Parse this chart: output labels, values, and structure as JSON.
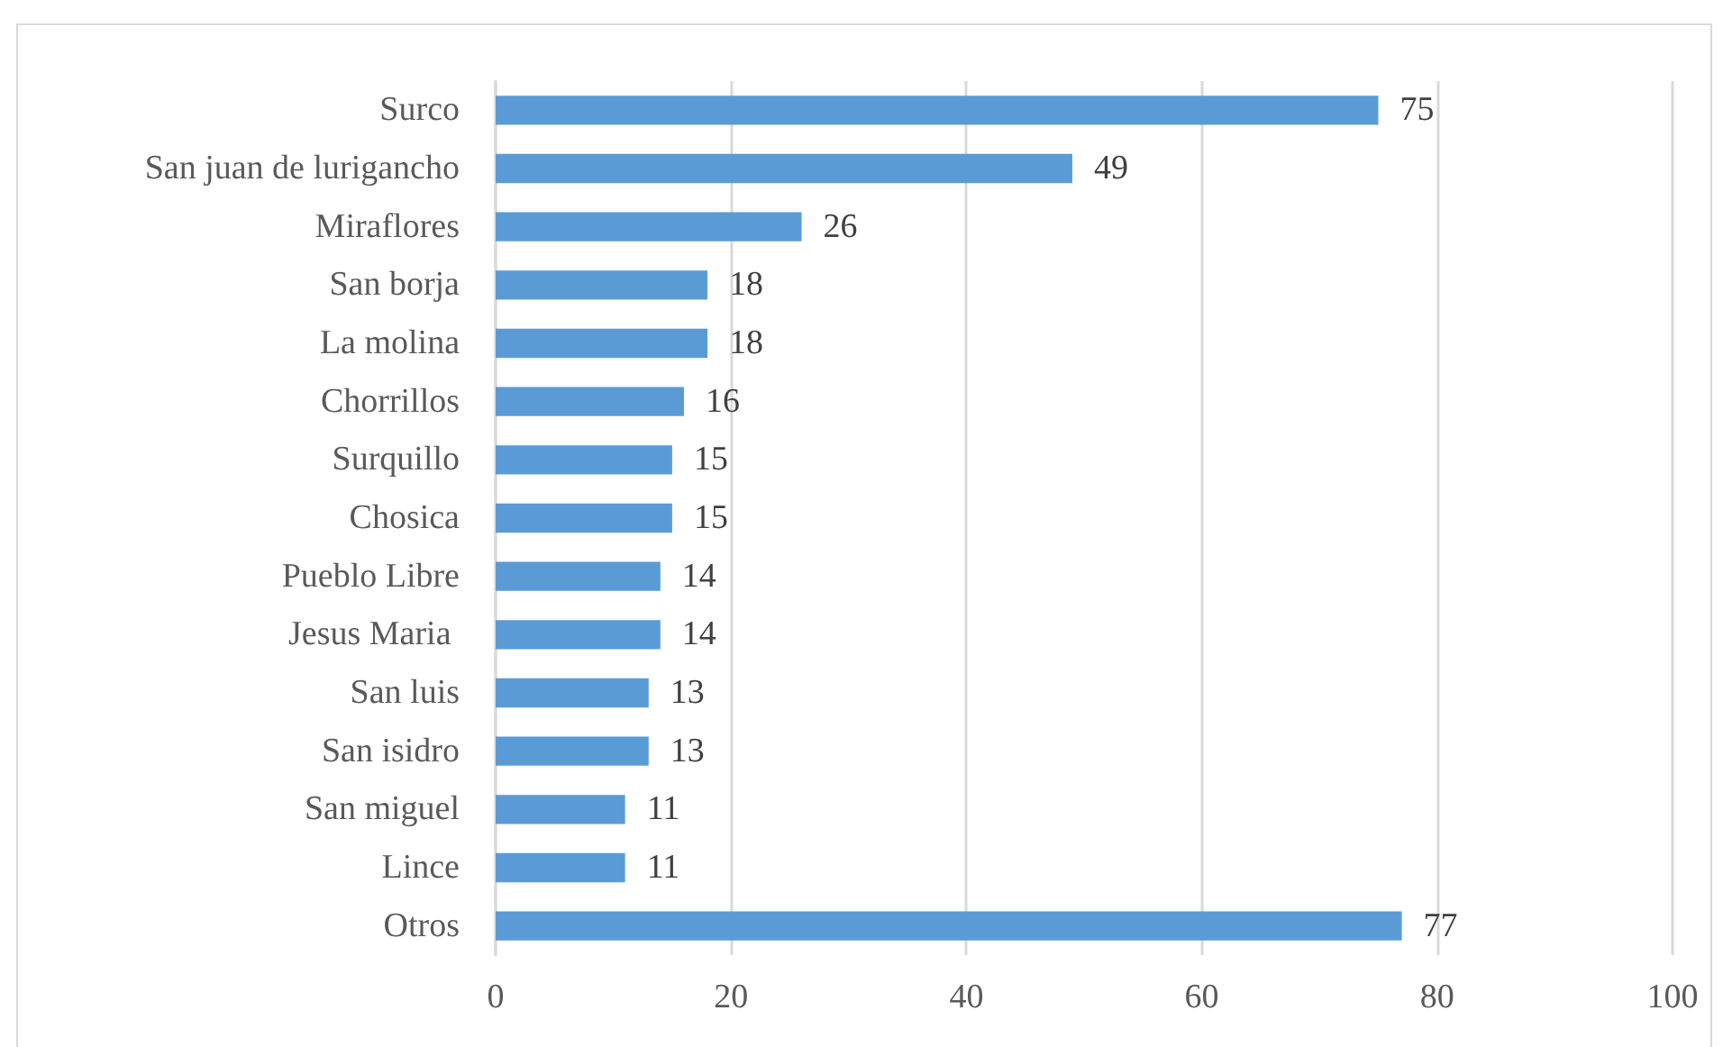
{
  "chart_data": {
    "type": "bar",
    "orientation": "horizontal",
    "categories": [
      "Surco",
      "San juan de lurigancho",
      "Miraflores",
      "San borja",
      "La molina",
      "Chorrillos",
      "Surquillo",
      "Chosica",
      "Pueblo Libre",
      "Jesus Maria ",
      "San luis",
      "San isidro",
      "San miguel",
      "Lince",
      "Otros"
    ],
    "values": [
      75,
      49,
      26,
      18,
      18,
      16,
      15,
      15,
      14,
      14,
      13,
      13,
      11,
      11,
      77
    ],
    "color": "#5b9bd5",
    "xlim": [
      0,
      100
    ],
    "xticks": [
      0,
      20,
      40,
      60,
      80,
      100
    ],
    "grid": "x",
    "data_labels": true
  }
}
